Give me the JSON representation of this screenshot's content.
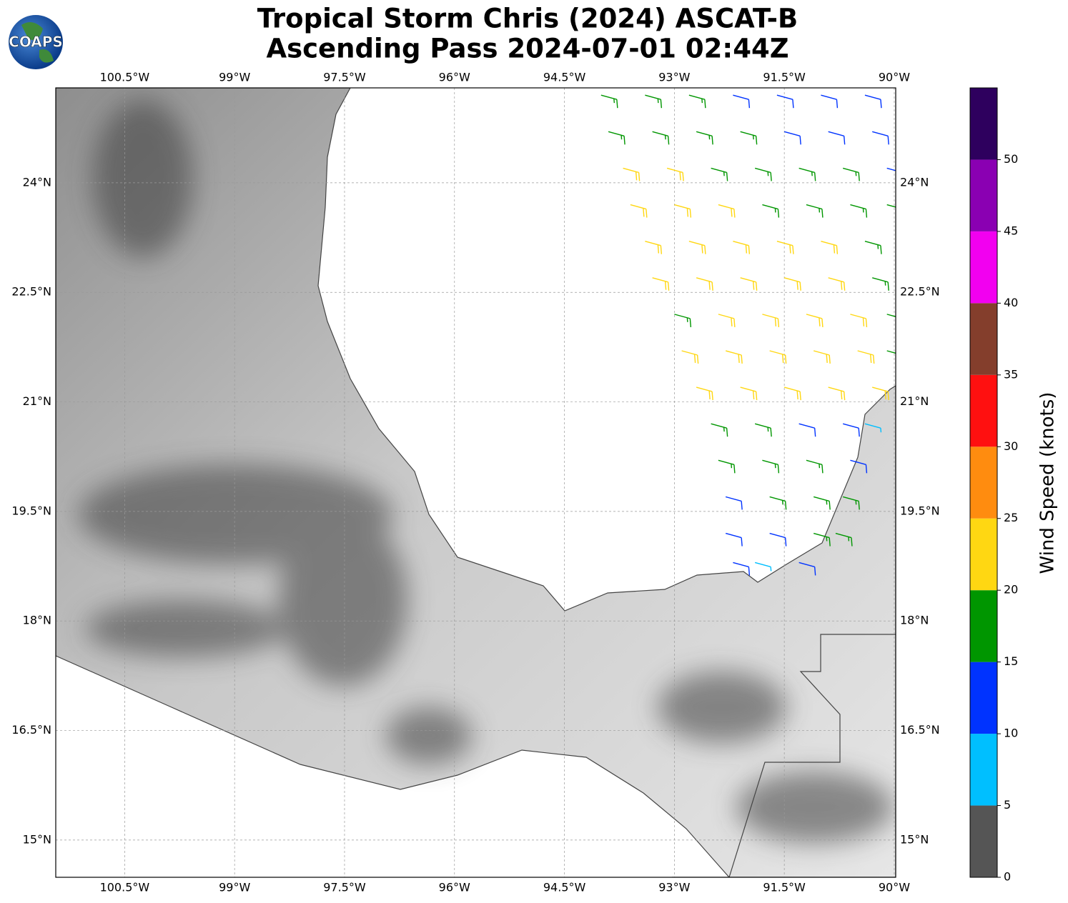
{
  "map": {
    "title": "Tropical Storm Chris (2024) ASCAT-B",
    "subtitle": "Ascending Pass 2024-07-01 02:44Z",
    "logo_text": "COAPS",
    "xlim": [
      -101.44,
      -89.98
    ],
    "ylim": [
      14.49,
      25.3
    ],
    "xticks": [
      {
        "value": -100.5,
        "label": "100.5°W"
      },
      {
        "value": -99,
        "label": "99°W"
      },
      {
        "value": -97.5,
        "label": "97.5°W"
      },
      {
        "value": -96,
        "label": "96°W"
      },
      {
        "value": -94.5,
        "label": "94.5°W"
      },
      {
        "value": -93,
        "label": "93°W"
      },
      {
        "value": -91.5,
        "label": "91.5°W"
      },
      {
        "value": -90,
        "label": "90°W"
      }
    ],
    "yticks": [
      {
        "value": 15,
        "label": "15°N"
      },
      {
        "value": 16.5,
        "label": "16.5°N"
      },
      {
        "value": 18,
        "label": "18°N"
      },
      {
        "value": 19.5,
        "label": "19.5°N"
      },
      {
        "value": 21,
        "label": "21°N"
      },
      {
        "value": 22.5,
        "label": "22.5°N"
      },
      {
        "value": 24,
        "label": "24°N"
      }
    ],
    "grid": true,
    "colorbar": {
      "label": "Wind Speed (knots)",
      "bounds": [
        0,
        5,
        10,
        15,
        20,
        25,
        30,
        35,
        40,
        45,
        50,
        55
      ],
      "colors": [
        "#555555",
        "#00bfff",
        "#0033ff",
        "#009600",
        "#ffd712",
        "#ff8c0f",
        "#ff1010",
        "#843e2c",
        "#f200f0",
        "#8a00b2",
        "#2e005e"
      ],
      "ticks": [
        0,
        5,
        10,
        15,
        20,
        25,
        30,
        35,
        40,
        45,
        50
      ]
    },
    "barbs": [
      {
        "lat": 25.2,
        "lons": [
          -94.0,
          -93.4,
          -92.8,
          -92.2,
          -91.6,
          -91.0,
          -90.4
        ],
        "speeds": [
          17,
          17,
          17,
          12,
          12,
          12,
          12
        ]
      },
      {
        "lat": 24.7,
        "lons": [
          -93.9,
          -93.3,
          -92.7,
          -92.1,
          -91.5,
          -90.9,
          -90.3
        ],
        "speeds": [
          17,
          17,
          17,
          17,
          12,
          12,
          12
        ]
      },
      {
        "lat": 24.2,
        "lons": [
          -93.7,
          -93.1,
          -92.5,
          -91.9,
          -91.3,
          -90.7,
          -90.1
        ],
        "speeds": [
          22,
          22,
          17,
          17,
          17,
          17,
          12
        ]
      },
      {
        "lat": 23.7,
        "lons": [
          -93.6,
          -93.0,
          -92.4,
          -91.8,
          -91.2,
          -90.6,
          -90.1
        ],
        "speeds": [
          22,
          22,
          22,
          17,
          17,
          17,
          17
        ]
      },
      {
        "lat": 23.2,
        "lons": [
          -93.4,
          -92.8,
          -92.2,
          -91.6,
          -91.0,
          -90.4
        ],
        "speeds": [
          22,
          22,
          22,
          22,
          22,
          17
        ]
      },
      {
        "lat": 22.7,
        "lons": [
          -93.3,
          -92.7,
          -92.1,
          -91.5,
          -90.9,
          -90.3
        ],
        "speeds": [
          22,
          22,
          22,
          22,
          22,
          17
        ]
      },
      {
        "lat": 22.2,
        "lons": [
          -93.0,
          -92.4,
          -91.8,
          -91.2,
          -90.6,
          -90.1
        ],
        "speeds": [
          17,
          22,
          22,
          22,
          22,
          17
        ]
      },
      {
        "lat": 21.7,
        "lons": [
          -92.9,
          -92.3,
          -91.7,
          -91.1,
          -90.5,
          -90.1
        ],
        "speeds": [
          22,
          22,
          22,
          22,
          22,
          17
        ]
      },
      {
        "lat": 21.2,
        "lons": [
          -92.7,
          -92.1,
          -91.5,
          -90.9,
          -90.3
        ],
        "speeds": [
          22,
          22,
          22,
          22,
          22
        ]
      },
      {
        "lat": 20.7,
        "lons": [
          -92.5,
          -91.9,
          -91.3,
          -90.7,
          -90.4
        ],
        "speeds": [
          17,
          17,
          12,
          12,
          7
        ]
      },
      {
        "lat": 20.2,
        "lons": [
          -92.4,
          -91.8,
          -91.2,
          -90.6
        ],
        "speeds": [
          17,
          17,
          17,
          12
        ]
      },
      {
        "lat": 19.7,
        "lons": [
          -92.3,
          -91.7,
          -91.1,
          -90.7
        ],
        "speeds": [
          12,
          17,
          17,
          17
        ]
      },
      {
        "lat": 19.2,
        "lons": [
          -92.3,
          -91.7,
          -91.1,
          -90.8
        ],
        "speeds": [
          12,
          12,
          17,
          17
        ]
      },
      {
        "lat": 18.8,
        "lons": [
          -92.2,
          -91.9,
          -91.3
        ],
        "speeds": [
          12,
          7,
          12
        ]
      }
    ]
  }
}
